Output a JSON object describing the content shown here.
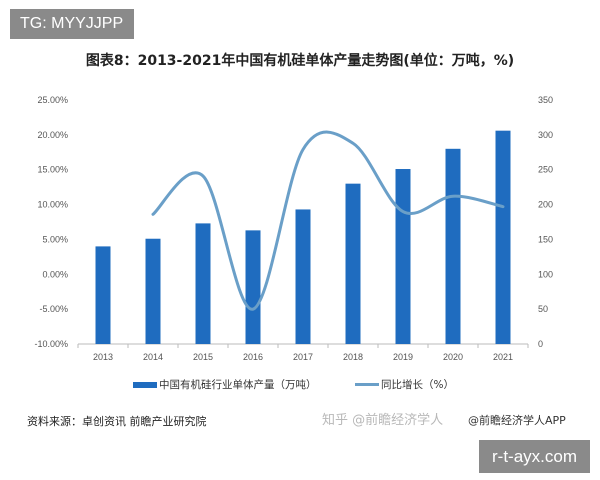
{
  "badge": "TG: MYYJJPP",
  "watermark_site": "r-t-ayx.com",
  "source": "资料来源：卓创资讯 前瞻产业研究院",
  "zhihu_mark": "知乎 @前瞻经济学人",
  "app_mark": "@前瞻经济学人APP",
  "chart_data": {
    "type": "bar+line",
    "title": "图表8：2013-2021年中国有机硅单体产量走势图(单位：万吨，%)",
    "categories": [
      "2013",
      "2014",
      "2015",
      "2016",
      "2017",
      "2018",
      "2019",
      "2020",
      "2021"
    ],
    "series": [
      {
        "name": "中国有机硅行业单体产量（万吨）",
        "type": "bar",
        "axis": "right",
        "color": "#1f6cbf",
        "values": [
          140,
          151,
          173,
          163,
          193,
          230,
          251,
          280,
          306
        ]
      },
      {
        "name": "同比增长（%）",
        "type": "line",
        "axis": "left",
        "smooth": true,
        "color": "#6a9fc8",
        "values": [
          null,
          8.6,
          14.1,
          -5.0,
          17.9,
          18.8,
          9.0,
          11.2,
          9.7
        ]
      }
    ],
    "left_axis": {
      "ylim": [
        -10,
        25
      ],
      "ticks": [
        "-10.00%",
        "-5.00%",
        "0.00%",
        "5.00%",
        "10.00%",
        "15.00%",
        "20.00%",
        "25.00%"
      ]
    },
    "right_axis": {
      "ylim": [
        0,
        350
      ],
      "ticks": [
        "0",
        "50",
        "100",
        "150",
        "200",
        "250",
        "300",
        "350"
      ]
    },
    "grid": false,
    "legend": "bottom"
  }
}
